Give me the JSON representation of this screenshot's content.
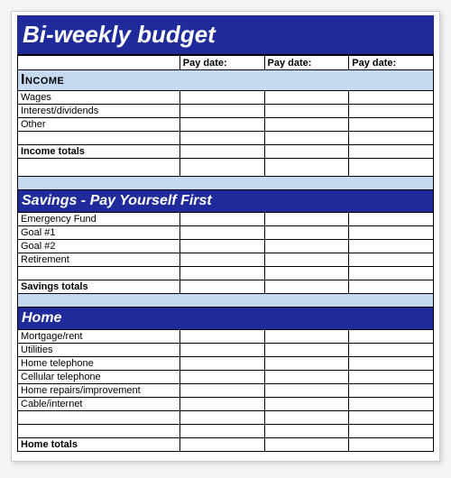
{
  "colors": {
    "title_bg": "#1f2b9a",
    "light_blue": "#c5d9f1",
    "dark_blue": "#1f2b9a",
    "white": "#ffffff",
    "black": "#000000"
  },
  "title": "Bi-weekly  budget",
  "column_headers": {
    "blank": "",
    "pay1": "Pay date:",
    "pay2": "Pay date:",
    "pay3": "Pay date:"
  },
  "sections": {
    "income": {
      "heading": "Income",
      "heading_bg": "#c5d9f1",
      "style": "smallcaps",
      "rows": [
        "Wages",
        "Interest/dividends",
        "Other"
      ],
      "totals_label": "Income totals"
    },
    "savings": {
      "heading": "Savings - Pay Yourself First",
      "heading_bg": "#1f2b9a",
      "style": "blue",
      "rows": [
        "Emergency Fund",
        "Goal #1",
        "Goal #2",
        "Retirement"
      ],
      "totals_label": "Savings totals"
    },
    "home": {
      "heading": "Home",
      "heading_bg": "#1f2b9a",
      "style": "blue",
      "rows": [
        "Mortgage/rent",
        "Utilities",
        "Home telephone",
        "Cellular telephone",
        "Home repairs/improvement",
        "Cable/internet"
      ],
      "totals_label": "Home totals"
    }
  }
}
